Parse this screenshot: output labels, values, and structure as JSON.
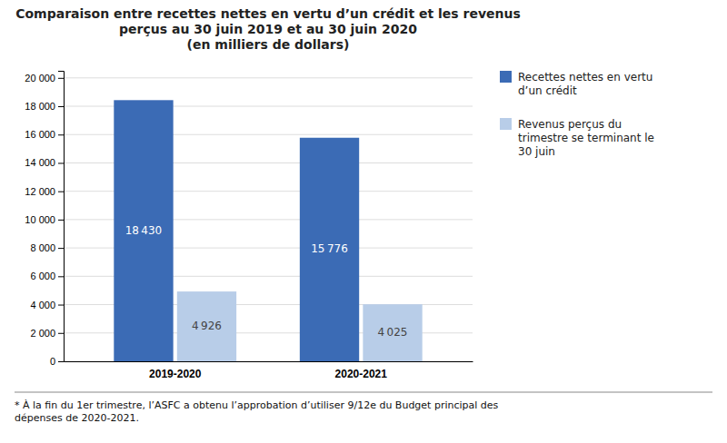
{
  "chart_data": {
    "type": "bar",
    "title": "Comparaison  entre recettes nettes en vertu d’un crédit et les revenus\nperçus au 30 juin 2019 et au 30 juin 2020\n(en milliers de dollars)",
    "categories": [
      "2019-2020",
      "2020-2021"
    ],
    "series": [
      {
        "name": "Recettes nettes en vertu\nd’un crédit",
        "color": "#3B6BB5",
        "values": [
          18430,
          15776
        ],
        "value_labels": [
          "18 430",
          "15 776"
        ]
      },
      {
        "name": "Revenus perçus du\ntrimestre se terminant le\n30 juin",
        "color": "#B8CDE8",
        "values": [
          4926,
          4025
        ],
        "value_labels": [
          "4 926",
          "4 025"
        ]
      }
    ],
    "ylim": [
      0,
      20500
    ],
    "yticks": [
      0,
      {
        "value": 2000,
        "label": "2 000"
      },
      {
        "value": 4000,
        "label": "4 000"
      },
      {
        "value": 6000,
        "label": "6 000"
      },
      {
        "value": 8000,
        "label": "8 000"
      },
      {
        "value": 10000,
        "label": "10 000"
      },
      {
        "value": 12000,
        "label": "12 000"
      },
      {
        "value": 14000,
        "label": "14 000"
      },
      {
        "value": 16000,
        "label": "16 000"
      },
      {
        "value": 18000,
        "label": "18 000"
      },
      {
        "value": 20000,
        "label": "20 000"
      }
    ],
    "grid": true,
    "legend": "right",
    "data_labels": true,
    "annotations": [
      "* À la fin du 1er trimestre, l’ASFC a obtenu l’approbation d’utiliser 9/12e du Budget principal des\ndépenses de 2020-2021."
    ]
  }
}
